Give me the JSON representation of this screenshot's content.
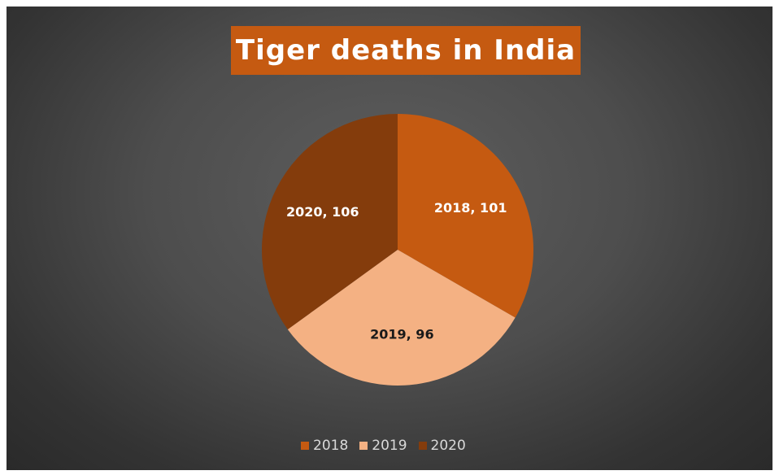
{
  "chart_data": {
    "type": "pie",
    "title": "Tiger deaths in India",
    "categories": [
      "2018",
      "2019",
      "2020"
    ],
    "values": [
      101,
      96,
      106
    ],
    "data_labels": [
      "2018, 101",
      "2019, 96",
      "2020, 106"
    ],
    "colors": [
      "#c55a11",
      "#f4b183",
      "#843c0c"
    ],
    "label_colors": [
      "#ffffff",
      "#1a1a1a",
      "#ffffff"
    ],
    "legend_position": "bottom"
  }
}
